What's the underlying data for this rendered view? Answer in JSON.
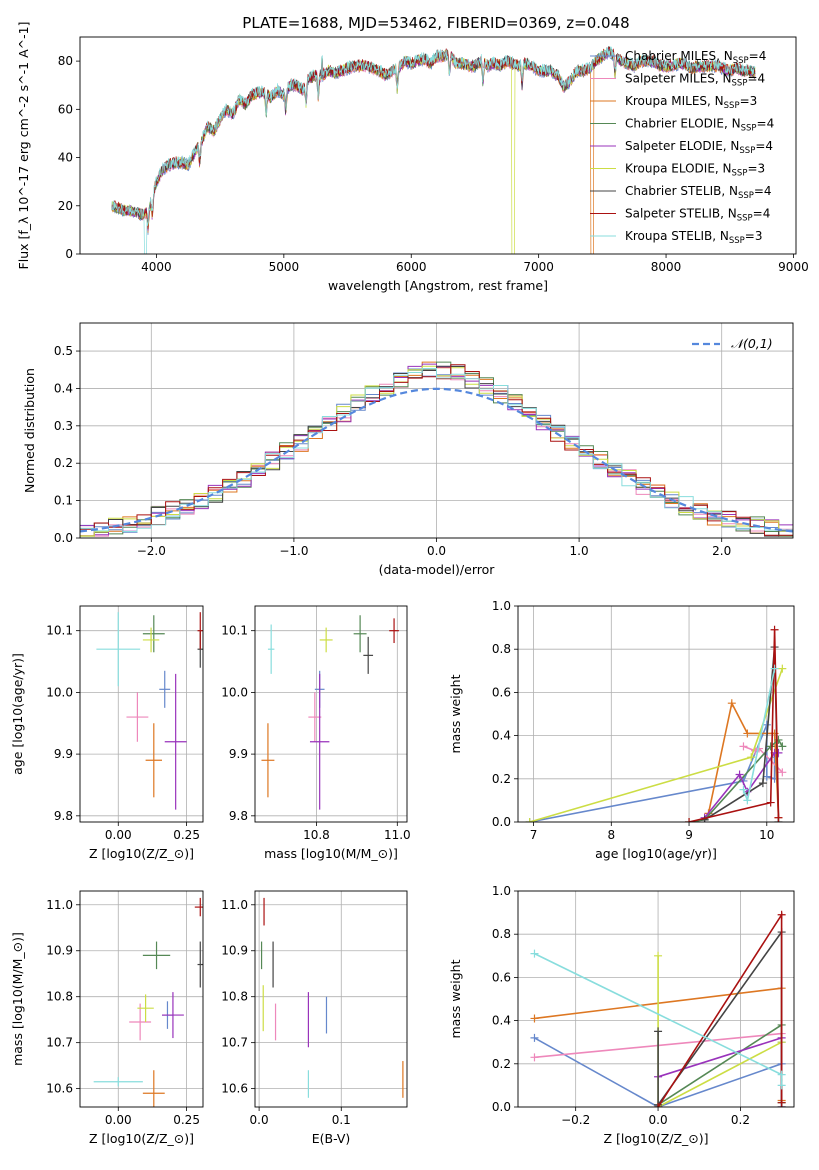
{
  "figure_title": "PLATE=1688, MJD=53462, FIBERID=0369, z=0.048",
  "colors": [
    "#6688cc",
    "#ee88bb",
    "#dd7722",
    "#558855",
    "#9933bb",
    "#ccdd44",
    "#444444",
    "#aa1111",
    "#88dddd"
  ],
  "chart_data": [
    {
      "type": "line",
      "name": "spectrum",
      "title": "PLATE=1688, MJD=53462, FIBERID=0369, z=0.048",
      "xlabel": "wavelength [Angstrom, rest frame]",
      "ylabel": "Flux [f_λ 10^-17 erg cm^-2 s^-1 A^-1]",
      "xlim": [
        3400,
        9020
      ],
      "ylim": [
        0,
        90
      ],
      "xticks": [
        4000,
        5000,
        6000,
        7000,
        8000,
        9000
      ],
      "yticks": [
        0,
        20,
        40,
        60,
        80
      ],
      "legend_position": "top-right",
      "series": [
        {
          "name": "Chabrier MILES, N_SSP=4",
          "gaps": []
        },
        {
          "name": "Salpeter MILES, N_SSP=4",
          "gaps": []
        },
        {
          "name": "Kroupa MILES, N_SSP=3",
          "gaps": [
            [
              7410,
              7430
            ]
          ]
        },
        {
          "name": "Chabrier ELODIE, N_SSP=4",
          "gaps": []
        },
        {
          "name": "Salpeter ELODIE, N_SSP=4",
          "gaps": []
        },
        {
          "name": "Kroupa ELODIE, N_SSP=3",
          "gaps": [
            [
              6790,
              6810
            ]
          ]
        },
        {
          "name": "Chabrier STELIB, N_SSP=4",
          "gaps": []
        },
        {
          "name": "Salpeter STELIB, N_SSP=4",
          "gaps": []
        },
        {
          "name": "Kroupa STELIB, N_SSP=3",
          "gaps": [
            [
              3905,
              3925
            ]
          ]
        }
      ],
      "envelope": {
        "x": [
          3650,
          3700,
          3750,
          3800,
          3850,
          3900,
          3950,
          4000,
          4050,
          4100,
          4150,
          4200,
          4250,
          4300,
          4350,
          4400,
          4450,
          4500,
          4550,
          4600,
          4650,
          4700,
          4750,
          4800,
          4850,
          4900,
          4950,
          5000,
          5050,
          5100,
          5150,
          5200,
          5250,
          5300,
          5350,
          5400,
          5450,
          5500,
          5550,
          5600,
          5650,
          5700,
          5750,
          5800,
          5850,
          5900,
          5950,
          6000,
          6050,
          6100,
          6150,
          6200,
          6250,
          6300,
          6350,
          6400,
          6450,
          6500,
          6550,
          6600,
          6650,
          6700,
          6750,
          6800,
          6850,
          6900,
          6950,
          7000,
          7050,
          7100,
          7150,
          7200,
          7250,
          7300,
          7350,
          7400,
          7450,
          7500,
          7550,
          7600,
          7650,
          7700,
          7750,
          7800,
          7850,
          7900,
          7950,
          8000,
          8050,
          8100,
          8150,
          8200,
          8250,
          8300,
          8350,
          8400,
          8450,
          8500,
          8550,
          8600,
          8650,
          8700
        ],
        "y": [
          20,
          19,
          18,
          18,
          17,
          16,
          20,
          30,
          35,
          37,
          38,
          38,
          37,
          42,
          46,
          53,
          51,
          56,
          60,
          58,
          64,
          62,
          66,
          67,
          67,
          65,
          68,
          66,
          70,
          70,
          68,
          73,
          74,
          74,
          76,
          75,
          76,
          77,
          78,
          78,
          78,
          77,
          76,
          74,
          76,
          77,
          80,
          79,
          80,
          81,
          79,
          82,
          82,
          83,
          79,
          79,
          78,
          78,
          80,
          78,
          79,
          78,
          80,
          79,
          78,
          79,
          78,
          76,
          76,
          76,
          74,
          69,
          72,
          76,
          76,
          77,
          80,
          82,
          84,
          82,
          80,
          79,
          78,
          80,
          80,
          80,
          78,
          78,
          78,
          79,
          79,
          77,
          78,
          78,
          78,
          78,
          77,
          76,
          77,
          76,
          76,
          75
        ]
      }
    },
    {
      "type": "step",
      "name": "residual-histogram",
      "xlabel": "(data-model)/error",
      "ylabel": "Normed distribution",
      "xlim": [
        -2.5,
        2.5
      ],
      "ylim": [
        0,
        0.575
      ],
      "xticks": [
        -2,
        -1,
        0,
        1,
        2
      ],
      "yticks": [
        0.0,
        0.1,
        0.2,
        0.3,
        0.4,
        0.5
      ],
      "grid": true,
      "legend_position": "top-right",
      "reference_curve": {
        "name": "𝒩(0,1)",
        "mu": 0,
        "sigma": 1,
        "color": "#5588dd"
      },
      "bin_width": 0.1
    },
    {
      "type": "scatter",
      "name": "age-vs-Z",
      "xlabel": "Z [log10(Z/Z_⊙)]",
      "ylabel": "age [log10(age/yr)]",
      "xlim": [
        -0.14,
        0.31
      ],
      "ylim": [
        9.79,
        10.14
      ],
      "xticks": [
        0.0,
        0.25
      ],
      "yticks": [
        9.8,
        9.9,
        10.0,
        10.1
      ],
      "grid": true,
      "points": [
        {
          "x": 0.17,
          "y": 10.005,
          "xerr": 0.02,
          "yerr": 0.03
        },
        {
          "x": 0.07,
          "y": 9.96,
          "xerr": 0.04,
          "yerr": 0.04
        },
        {
          "x": 0.13,
          "y": 9.89,
          "xerr": 0.03,
          "yerr": 0.06
        },
        {
          "x": 0.13,
          "y": 10.095,
          "xerr": 0.04,
          "yerr": 0.03
        },
        {
          "x": 0.21,
          "y": 9.92,
          "xerr": 0.04,
          "yerr": 0.11
        },
        {
          "x": 0.12,
          "y": 10.085,
          "xerr": 0.03,
          "yerr": 0.02
        },
        {
          "x": 0.3,
          "y": 10.07,
          "xerr": 0.01,
          "yerr": 0.03
        },
        {
          "x": 0.3,
          "y": 10.1,
          "xerr": 0.01,
          "yerr": 0.03
        },
        {
          "x": 0.0,
          "y": 10.07,
          "xerr": 0.08,
          "yerr": 0.06
        }
      ]
    },
    {
      "type": "scatter",
      "name": "age-vs-mass",
      "xlabel": "mass [log10(M/M_⊙)]",
      "ylabel": "",
      "xlim": [
        10.56,
        11.03
      ],
      "ylim": [
        9.79,
        10.14
      ],
      "xticks": [
        10.75,
        11.0
      ],
      "yticks": [
        9.8,
        9.9,
        10.0,
        10.1
      ],
      "grid": true,
      "points": [
        {
          "x": 10.76,
          "y": 10.005,
          "xerr": 0.015,
          "yerr": 0.03
        },
        {
          "x": 10.745,
          "y": 9.96,
          "xerr": 0.02,
          "yerr": 0.04
        },
        {
          "x": 10.6,
          "y": 9.89,
          "xerr": 0.02,
          "yerr": 0.06
        },
        {
          "x": 10.885,
          "y": 10.095,
          "xerr": 0.02,
          "yerr": 0.03
        },
        {
          "x": 10.76,
          "y": 9.92,
          "xerr": 0.03,
          "yerr": 0.11
        },
        {
          "x": 10.78,
          "y": 10.085,
          "xerr": 0.02,
          "yerr": 0.02
        },
        {
          "x": 10.91,
          "y": 10.06,
          "xerr": 0.015,
          "yerr": 0.03
        },
        {
          "x": 10.99,
          "y": 10.1,
          "xerr": 0.015,
          "yerr": 0.02
        },
        {
          "x": 10.61,
          "y": 10.07,
          "xerr": 0.01,
          "yerr": 0.04
        }
      ]
    },
    {
      "type": "line",
      "name": "mass-weight-vs-age",
      "xlabel": "age [log10(age/yr)]",
      "ylabel": "mass weight",
      "xlim": [
        6.8,
        10.35
      ],
      "ylim": [
        0,
        1
      ],
      "xticks": [
        7,
        8,
        9,
        10
      ],
      "yticks": [
        0.0,
        0.2,
        0.4,
        0.6,
        0.8,
        1.0
      ],
      "grid": true,
      "series": [
        {
          "x": [
            6.95,
            9.7,
            10.0,
            10.0,
            10.1,
            10.1
          ],
          "y": [
            0.0,
            0.19,
            0.45,
            0.21,
            0.2,
            0.3
          ]
        },
        {
          "x": [
            9.7,
            9.85,
            9.9,
            10.2
          ],
          "y": [
            0.35,
            0.33,
            0.34,
            0.23
          ]
        },
        {
          "x": [
            9.25,
            9.55,
            9.75,
            10.1,
            10.15
          ],
          "y": [
            0.04,
            0.55,
            0.41,
            0.41,
            0.02
          ]
        },
        {
          "x": [
            9.0,
            9.2,
            10.05,
            10.15,
            10.2
          ],
          "y": [
            0.0,
            0.01,
            0.35,
            0.38,
            0.35
          ]
        },
        {
          "x": [
            9.2,
            9.65,
            9.75,
            10.1,
            10.15
          ],
          "y": [
            0.02,
            0.22,
            0.14,
            0.32,
            0.32
          ]
        },
        {
          "x": [
            6.95,
            9.8,
            10.2
          ],
          "y": [
            0.0,
            0.3,
            0.71
          ]
        },
        {
          "x": [
            9.2,
            9.95,
            10.1,
            10.15
          ],
          "y": [
            0.01,
            0.18,
            0.81,
            0.0
          ]
        },
        {
          "x": [
            9.0,
            10.05,
            10.1,
            10.15
          ],
          "y": [
            0.0,
            0.09,
            0.89,
            0.02
          ]
        },
        {
          "x": [
            9.7,
            9.75,
            10.1
          ],
          "y": [
            0.15,
            0.1,
            0.71
          ]
        }
      ]
    },
    {
      "type": "scatter",
      "name": "mass-vs-Z",
      "xlabel": "Z [log10(Z/Z_⊙)]",
      "ylabel": "mass [log10(M/M_⊙)]",
      "xlim": [
        -0.14,
        0.31
      ],
      "ylim": [
        10.56,
        11.03
      ],
      "xticks": [
        0.0,
        0.25
      ],
      "yticks": [
        10.6,
        10.7,
        10.8,
        10.9,
        11.0
      ],
      "grid": true,
      "points": [
        {
          "x": 0.18,
          "y": 10.76,
          "xerr": 0.02,
          "yerr": 0.03
        },
        {
          "x": 0.08,
          "y": 10.745,
          "xerr": 0.04,
          "yerr": 0.04
        },
        {
          "x": 0.13,
          "y": 10.59,
          "xerr": 0.04,
          "yerr": 0.05
        },
        {
          "x": 0.14,
          "y": 10.89,
          "xerr": 0.05,
          "yerr": 0.03
        },
        {
          "x": 0.2,
          "y": 10.76,
          "xerr": 0.04,
          "yerr": 0.05
        },
        {
          "x": 0.1,
          "y": 10.775,
          "xerr": 0.03,
          "yerr": 0.03
        },
        {
          "x": 0.3,
          "y": 10.87,
          "xerr": 0.01,
          "yerr": 0.05
        },
        {
          "x": 0.3,
          "y": 10.995,
          "xerr": 0.02,
          "yerr": 0.02
        },
        {
          "x": 0.0,
          "y": 10.615,
          "xerr": 0.09,
          "yerr": 0.01
        }
      ]
    },
    {
      "type": "scatter",
      "name": "mass-vs-EBV",
      "xlabel": "E(B-V)",
      "ylabel": "",
      "xlim": [
        -0.005,
        0.18
      ],
      "ylim": [
        10.56,
        11.03
      ],
      "xticks": [
        0.0,
        0.1
      ],
      "yticks": [
        10.6,
        10.7,
        10.8,
        10.9,
        11.0
      ],
      "grid": true,
      "points": [
        {
          "x": 0.082,
          "y": 10.76,
          "xerr": 0,
          "yerr": 0.04
        },
        {
          "x": 0.02,
          "y": 10.745,
          "xerr": 0,
          "yerr": 0.04
        },
        {
          "x": 0.175,
          "y": 10.62,
          "xerr": 0,
          "yerr": 0.04
        },
        {
          "x": 0.003,
          "y": 10.89,
          "xerr": 0,
          "yerr": 0.03
        },
        {
          "x": 0.06,
          "y": 10.75,
          "xerr": 0,
          "yerr": 0.06
        },
        {
          "x": 0.005,
          "y": 10.775,
          "xerr": 0,
          "yerr": 0.05
        },
        {
          "x": 0.017,
          "y": 10.87,
          "xerr": 0,
          "yerr": 0.05
        },
        {
          "x": 0.006,
          "y": 10.985,
          "xerr": 0,
          "yerr": 0.03
        },
        {
          "x": 0.06,
          "y": 10.61,
          "xerr": 0,
          "yerr": 0.03
        }
      ]
    },
    {
      "type": "line",
      "name": "mass-weight-vs-Z",
      "xlabel": "Z [log10(Z/Z_⊙)]",
      "ylabel": "mass weight",
      "xlim": [
        -0.34,
        0.33
      ],
      "ylim": [
        0,
        1
      ],
      "xticks": [
        -0.2,
        0.0,
        0.2
      ],
      "yticks": [
        0.0,
        0.2,
        0.4,
        0.6,
        0.8,
        1.0
      ],
      "grid": true,
      "series": [
        {
          "x": [
            -0.3,
            0.0,
            0.3,
            0.3
          ],
          "y": [
            0.32,
            0.0,
            0.2,
            0.3
          ]
        },
        {
          "x": [
            -0.3,
            0.3
          ],
          "y": [
            0.23,
            0.34
          ]
        },
        {
          "x": [
            -0.3,
            0.3,
            0.3
          ],
          "y": [
            0.41,
            0.55,
            0.03
          ]
        },
        {
          "x": [
            0.0,
            0.3,
            0.3
          ],
          "y": [
            0.01,
            0.38,
            0.02
          ]
        },
        {
          "x": [
            0.0,
            0.3,
            0.3
          ],
          "y": [
            0.14,
            0.32,
            0.0
          ]
        },
        {
          "x": [
            0.0,
            0.0,
            0.3
          ],
          "y": [
            0.7,
            0.0,
            0.3
          ]
        },
        {
          "x": [
            0.0,
            0.0,
            0.3,
            0.3
          ],
          "y": [
            0.35,
            0.01,
            0.81,
            0.0
          ]
        },
        {
          "x": [
            0.0,
            0.3,
            0.3
          ],
          "y": [
            0.0,
            0.89,
            0.02
          ]
        },
        {
          "x": [
            -0.3,
            0.3,
            0.3
          ],
          "y": [
            0.71,
            0.15,
            0.1
          ]
        }
      ]
    }
  ]
}
